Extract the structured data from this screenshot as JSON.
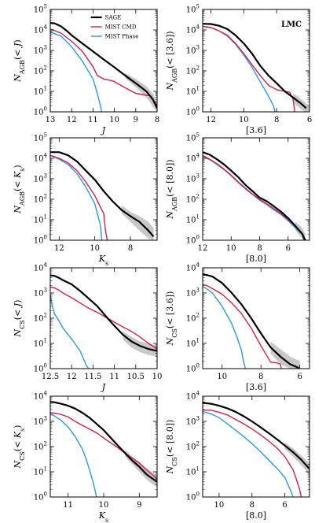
{
  "figure": {
    "annotation": "LMC",
    "series_styles": [
      {
        "name": "SAGE",
        "color": "#000000",
        "width": 2.2
      },
      {
        "name": "MIST CMD",
        "color": "#d6204a",
        "width": 1.4
      },
      {
        "name": "MIST Phase",
        "color": "#2f98e0",
        "width": 1.4
      }
    ],
    "band_color": "#c8c8c8"
  },
  "chart_data": [
    {
      "type": "line",
      "yscale": "log",
      "xinverted": true,
      "xlabel": "J",
      "ylabel": "N_AGB(< J)",
      "xlim": [
        13,
        8
      ],
      "ylim": [
        1,
        100000
      ],
      "xticks": [
        13,
        12,
        11,
        10,
        9,
        8
      ],
      "legend": {
        "entries": [
          "SAGE",
          "MIST CMD",
          "MIST Phase"
        ],
        "position": "top-right"
      },
      "series": [
        {
          "name": "SAGE",
          "x": [
            13,
            12.8,
            12.5,
            12.2,
            12.0,
            11.5,
            11.0,
            10.5,
            10.0,
            9.5,
            9.0,
            8.5,
            8.2,
            8.0
          ],
          "y": [
            22000,
            21000,
            15000,
            8500,
            5500,
            2200,
            900,
            360,
            150,
            60,
            25,
            10,
            4,
            1.5
          ]
        },
        {
          "name": "MIST CMD",
          "x": [
            13,
            12.5,
            12.0,
            11.5,
            11.0,
            10.8,
            10.5,
            10.2,
            10.0,
            9.5,
            9.0,
            8.7,
            8.3,
            8.0
          ],
          "y": [
            11000,
            7000,
            2800,
            900,
            160,
            60,
            40,
            35,
            30,
            15,
            8,
            7,
            6,
            2
          ]
        },
        {
          "name": "MIST Phase",
          "x": [
            13,
            12.5,
            12.0,
            11.5,
            11.0,
            10.8,
            10.65,
            10.6
          ],
          "y": [
            8000,
            5000,
            1500,
            300,
            40,
            8,
            2,
            1
          ]
        }
      ],
      "band": {
        "x": [
          9.5,
          9.0,
          8.5,
          8.2,
          8.0
        ],
        "lower": [
          45,
          16,
          5,
          1.8,
          1
        ],
        "upper": [
          80,
          40,
          18,
          8,
          3
        ]
      }
    },
    {
      "type": "line",
      "yscale": "log",
      "xinverted": true,
      "xlabel": "[3.6]",
      "ylabel": "N_AGB(< [3.6])",
      "xlim": [
        12.5,
        6
      ],
      "ylim": [
        1,
        100000
      ],
      "xticks": [
        12,
        10,
        8,
        6
      ],
      "series": [
        {
          "name": "SAGE",
          "x": [
            12.5,
            12.0,
            11.5,
            11.0,
            10.5,
            10.0,
            9.5,
            9.0,
            8.5,
            8.0,
            7.5,
            7.0,
            6.5,
            6.2
          ],
          "y": [
            20000,
            19500,
            16000,
            11000,
            5500,
            2200,
            700,
            180,
            60,
            25,
            10,
            5,
            2.5,
            1.5
          ]
        },
        {
          "name": "MIST CMD",
          "x": [
            12.5,
            12.0,
            11.5,
            11.0,
            10.5,
            10.0,
            9.5,
            9.0,
            8.5,
            8.0,
            7.5,
            7.2,
            7.0,
            6.9
          ],
          "y": [
            15000,
            13000,
            9000,
            5500,
            2200,
            700,
            200,
            60,
            20,
            12,
            10,
            9,
            4,
            1
          ]
        },
        {
          "name": "MIST Phase",
          "x": [
            12.5,
            12.0,
            11.5,
            11.0,
            10.5,
            10.0,
            9.5,
            9.0,
            8.5,
            8.2,
            8.1
          ],
          "y": [
            15000,
            13000,
            9000,
            5000,
            2000,
            600,
            150,
            30,
            6,
            2,
            1
          ]
        }
      ],
      "band": {
        "x": [
          7.0,
          6.6,
          6.3,
          6.0
        ],
        "lower": [
          3,
          1.5,
          1.0,
          1.0
        ],
        "upper": [
          8,
          5,
          3,
          2
        ]
      }
    },
    {
      "type": "line",
      "yscale": "log",
      "xinverted": true,
      "xlabel": "K_s",
      "ylabel": "N_AGB(< K_s)",
      "xlim": [
        12.5,
        6.5
      ],
      "ylim": [
        1,
        100000
      ],
      "xticks": [
        12,
        10,
        8
      ],
      "series": [
        {
          "name": "SAGE",
          "x": [
            12.5,
            12.0,
            11.5,
            11.0,
            10.5,
            10.0,
            9.5,
            9.0,
            8.5,
            8.0,
            7.5,
            7.0,
            6.7
          ],
          "y": [
            20000,
            20000,
            14000,
            7000,
            2500,
            900,
            250,
            80,
            30,
            15,
            8,
            3,
            1.5
          ]
        },
        {
          "name": "MIST CMD",
          "x": [
            12.5,
            12.0,
            11.5,
            11.0,
            10.5,
            10.0,
            9.5,
            9.4,
            9.3
          ],
          "y": [
            14000,
            10000,
            6000,
            2500,
            700,
            150,
            20,
            3,
            1
          ]
        },
        {
          "name": "MIST Phase",
          "x": [
            12.5,
            12.0,
            11.5,
            11.0,
            10.5,
            10.0,
            9.7,
            9.6
          ],
          "y": [
            14000,
            9000,
            5000,
            1800,
            400,
            60,
            6,
            1
          ]
        }
      ],
      "band": {
        "x": [
          8.5,
          8.0,
          7.5,
          7.0,
          6.7
        ],
        "lower": [
          20,
          8,
          3,
          1.2,
          1
        ],
        "upper": [
          50,
          25,
          15,
          8,
          4
        ]
      }
    },
    {
      "type": "line",
      "yscale": "log",
      "xinverted": true,
      "xlabel": "[8.0]",
      "ylabel": "N_AGB(< [8.0])",
      "xlim": [
        12,
        4.5
      ],
      "ylim": [
        1,
        100000
      ],
      "xticks": [
        12,
        10,
        8,
        6
      ],
      "series": [
        {
          "name": "SAGE",
          "x": [
            12,
            11.5,
            11.0,
            10.5,
            10.0,
            9.5,
            9.0,
            8.5,
            8.0,
            7.5,
            7.0,
            6.5,
            6.0,
            5.5,
            5.0,
            4.8
          ],
          "y": [
            20000,
            15000,
            9000,
            5000,
            2500,
            1200,
            500,
            250,
            120,
            80,
            45,
            25,
            12,
            5,
            2,
            1
          ]
        },
        {
          "name": "MIST CMD",
          "x": [
            12,
            11.5,
            11.0,
            10.5,
            10.0,
            9.5,
            9.0,
            8.5,
            8.0,
            7.5,
            7.0,
            6.5,
            6.0,
            5.5,
            5.0,
            4.9
          ],
          "y": [
            14000,
            9000,
            5500,
            3000,
            1500,
            700,
            350,
            180,
            100,
            60,
            35,
            20,
            10,
            5,
            2,
            1
          ]
        },
        {
          "name": "MIST Phase",
          "x": [
            12,
            11.5,
            11.0,
            10.5,
            10.0,
            9.5,
            9.0,
            8.5,
            8.0,
            7.5,
            7.0,
            6.5,
            6.0,
            5.5,
            5.0,
            4.9
          ],
          "y": [
            12000,
            8500,
            5000,
            2800,
            1400,
            650,
            320,
            170,
            90,
            55,
            30,
            18,
            9,
            4,
            2,
            1
          ]
        }
      ],
      "band": {
        "x": [
          5.5,
          5.0,
          4.8
        ],
        "lower": [
          3,
          1.2,
          1
        ],
        "upper": [
          8,
          4,
          2
        ]
      }
    },
    {
      "type": "line",
      "yscale": "log",
      "xinverted": true,
      "xlabel": "J",
      "ylabel": "N_CS(< J)",
      "xlim": [
        12.5,
        10.0
      ],
      "ylim": [
        1,
        10000
      ],
      "xticks": [
        12.5,
        12.0,
        11.5,
        11.0,
        10.5,
        10.0
      ],
      "series": [
        {
          "name": "SAGE",
          "x": [
            12.5,
            12.4,
            12.3,
            12.2,
            12.0,
            11.8,
            11.6,
            11.4,
            11.2,
            11.0,
            10.8,
            10.6,
            10.4,
            10.2,
            10.0
          ],
          "y": [
            5000,
            4800,
            4000,
            3200,
            2200,
            1200,
            600,
            300,
            120,
            50,
            22,
            12,
            8,
            6,
            5
          ]
        },
        {
          "name": "MIST CMD",
          "x": [
            12.5,
            12.4,
            12.3,
            12.2,
            12.0,
            11.8,
            11.6,
            11.4,
            11.2,
            11.0,
            10.8,
            10.6,
            10.4,
            10.2,
            10.0
          ],
          "y": [
            1700,
            1600,
            1300,
            1000,
            650,
            400,
            250,
            170,
            110,
            70,
            45,
            30,
            18,
            10,
            6
          ]
        },
        {
          "name": "MIST Phase",
          "x": [
            12.5,
            12.45,
            12.4,
            12.3,
            12.2,
            12.0,
            11.8,
            11.7,
            11.65,
            11.6
          ],
          "y": [
            800,
            300,
            150,
            80,
            40,
            15,
            5,
            2,
            1.3,
            1
          ]
        }
      ],
      "band": {
        "x": [
          10.8,
          10.6,
          10.4,
          10.2,
          10.0
        ],
        "lower": [
          14,
          7,
          4.5,
          3.5,
          3
        ],
        "upper": [
          30,
          18,
          12,
          10,
          8
        ]
      }
    },
    {
      "type": "line",
      "yscale": "log",
      "xinverted": true,
      "xlabel": "[3.6]",
      "ylabel": "N_CS(< [3.6])",
      "xlim": [
        11,
        5.5
      ],
      "ylim": [
        1,
        10000
      ],
      "xticks": [
        10,
        8,
        6
      ],
      "series": [
        {
          "name": "SAGE",
          "x": [
            11,
            10.8,
            10.5,
            10.0,
            9.5,
            9.0,
            8.5,
            8.0,
            7.5,
            7.0,
            6.5,
            6.2,
            6.0
          ],
          "y": [
            5500,
            5200,
            4500,
            2500,
            1000,
            350,
            100,
            25,
            7,
            3,
            1.5,
            1.2,
            1
          ]
        },
        {
          "name": "MIST CMD",
          "x": [
            11,
            10.8,
            10.5,
            10.0,
            9.5,
            9.0,
            8.5,
            8.0,
            7.5,
            7.2,
            7.0,
            6.95
          ],
          "y": [
            2200,
            2000,
            1500,
            900,
            400,
            150,
            40,
            8,
            1.8,
            1.7,
            1.5,
            1
          ]
        },
        {
          "name": "MIST Phase",
          "x": [
            11,
            10.8,
            10.5,
            10.0,
            9.5,
            9.2,
            9.0,
            8.9,
            8.8
          ],
          "y": [
            1800,
            1500,
            1000,
            300,
            60,
            15,
            5,
            2,
            1
          ]
        }
      ],
      "band": {
        "x": [
          7.5,
          7.0,
          6.5,
          6.0
        ],
        "lower": [
          4,
          1.5,
          1,
          1
        ],
        "upper": [
          12,
          6,
          3,
          2
        ]
      }
    },
    {
      "type": "line",
      "yscale": "log",
      "xinverted": true,
      "xlabel": "K_s",
      "ylabel": "N_CS(< K_s)",
      "xlim": [
        11.5,
        8.5
      ],
      "ylim": [
        1,
        10000
      ],
      "xticks": [
        11,
        10,
        9
      ],
      "series": [
        {
          "name": "SAGE",
          "x": [
            11.5,
            11.4,
            11.2,
            11.0,
            10.8,
            10.6,
            10.4,
            10.2,
            10.0,
            9.8,
            9.6,
            9.4,
            9.2,
            9.0,
            8.8,
            8.6,
            8.5
          ],
          "y": [
            6000,
            5800,
            5000,
            4200,
            3200,
            2200,
            1400,
            800,
            450,
            220,
            110,
            55,
            28,
            16,
            8,
            5,
            4
          ]
        },
        {
          "name": "MIST CMD",
          "x": [
            11.5,
            11.4,
            11.2,
            11.0,
            10.8,
            10.6,
            10.4,
            10.2,
            10.0,
            9.8,
            9.6,
            9.4,
            9.2,
            9.0,
            8.8,
            8.6,
            8.5
          ],
          "y": [
            2200,
            2150,
            1900,
            1500,
            1000,
            700,
            500,
            350,
            220,
            140,
            90,
            55,
            35,
            22,
            12,
            7,
            5
          ]
        },
        {
          "name": "MIST Phase",
          "x": [
            11.5,
            11.4,
            11.2,
            11.0,
            10.8,
            10.6,
            10.5,
            10.4,
            10.3,
            10.25,
            10.2
          ],
          "y": [
            1900,
            1700,
            1100,
            600,
            250,
            80,
            35,
            12,
            4,
            2,
            1
          ]
        }
      ],
      "band": {
        "x": [
          9.4,
          9.2,
          9.0,
          8.8,
          8.6,
          8.5
        ],
        "lower": [
          40,
          20,
          10,
          5,
          3,
          2.5
        ],
        "upper": [
          75,
          40,
          25,
          14,
          9,
          7
        ]
      }
    },
    {
      "type": "line",
      "yscale": "log",
      "xinverted": true,
      "xlabel": "[8.0]",
      "ylabel": "N_CS(< [8.0])",
      "xlim": [
        11,
        4.5
      ],
      "ylim": [
        1,
        10000
      ],
      "xticks": [
        10,
        8,
        6
      ],
      "series": [
        {
          "name": "SAGE",
          "x": [
            11,
            10.5,
            10.0,
            9.5,
            9.0,
            8.5,
            8.0,
            7.5,
            7.0,
            6.5,
            6.0,
            5.5,
            5.0,
            4.5
          ],
          "y": [
            5500,
            5000,
            4200,
            3300,
            2400,
            1600,
            1000,
            600,
            350,
            200,
            110,
            60,
            30,
            13
          ]
        },
        {
          "name": "MIST CMD",
          "x": [
            11,
            10.5,
            10.0,
            9.5,
            9.0,
            8.5,
            8.0,
            7.5,
            7.0,
            6.5,
            6.0,
            5.5,
            5.3,
            5.1,
            5.0
          ],
          "y": [
            2800,
            2800,
            2300,
            1800,
            1200,
            800,
            500,
            300,
            170,
            90,
            40,
            12,
            5,
            2,
            1
          ]
        },
        {
          "name": "MIST Phase",
          "x": [
            11,
            10.5,
            10.0,
            9.5,
            9.0,
            8.5,
            8.0,
            7.5,
            7.0,
            6.5,
            6.0,
            5.8,
            5.6,
            5.5
          ],
          "y": [
            2500,
            2000,
            1400,
            800,
            450,
            250,
            130,
            65,
            30,
            14,
            6,
            3,
            1.5,
            1
          ]
        }
      ],
      "band": {
        "x": [
          6.0,
          5.5,
          5.0,
          4.5
        ],
        "lower": [
          80,
          40,
          18,
          8
        ],
        "upper": [
          150,
          85,
          45,
          22
        ]
      }
    }
  ]
}
